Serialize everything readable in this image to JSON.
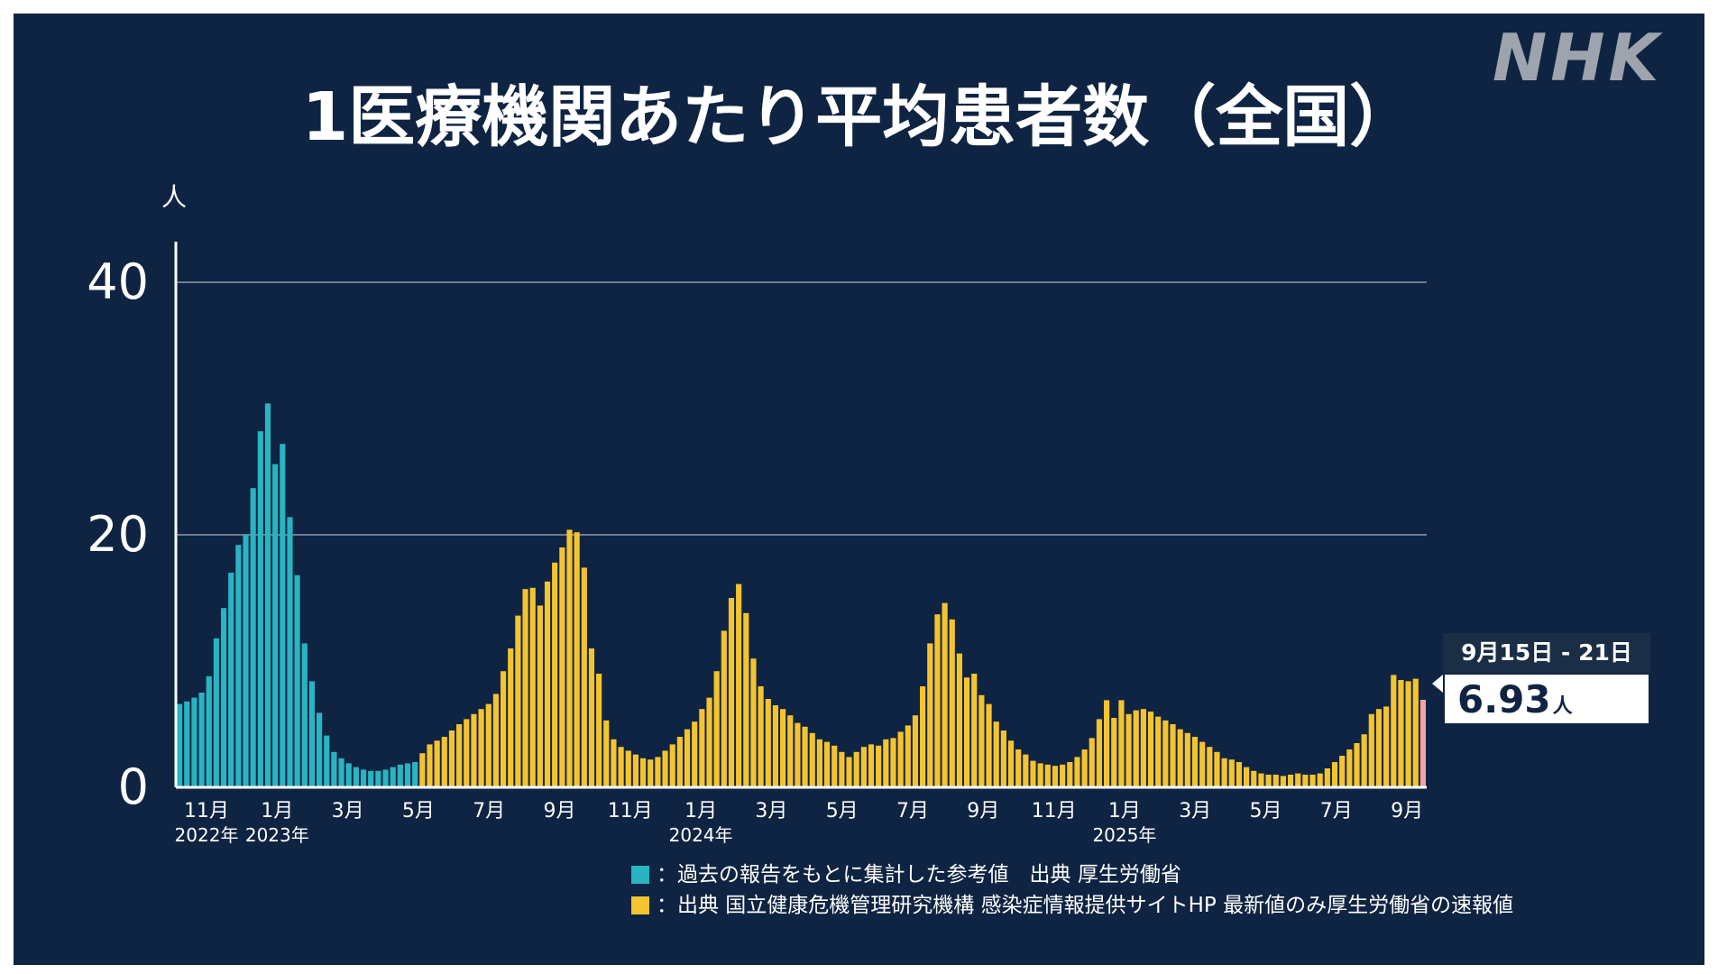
{
  "brand": {
    "logo_text": "NHK"
  },
  "chart_data": {
    "type": "bar",
    "title": "1医療機関あたり平均患者数（全国）",
    "ylabel": "人",
    "ylim": [
      0,
      40
    ],
    "yticks": [
      0,
      20,
      40
    ],
    "grid": true,
    "month_labels": [
      "11月",
      "1月",
      "3月",
      "5月",
      "7月",
      "9月",
      "11月",
      "1月",
      "3月",
      "5月",
      "7月",
      "9月",
      "11月",
      "1月",
      "3月",
      "5月",
      "7月",
      "9月"
    ],
    "year_labels": [
      {
        "label": "2022年",
        "month_index": 0
      },
      {
        "label": "2023年",
        "month_index": 1
      },
      {
        "label": "2024年",
        "month_index": 7
      },
      {
        "label": "2025年",
        "month_index": 13
      }
    ],
    "series": [
      {
        "name": "過去の報告をもとに集計した参考値",
        "color": "#29b4c2",
        "values": [
          6.6,
          6.8,
          7.1,
          7.5,
          8.8,
          11.8,
          14.2,
          17.0,
          19.2,
          20.0,
          23.7,
          28.2,
          30.4,
          25.6,
          27.2,
          21.4,
          16.8,
          11.4,
          8.4,
          5.9,
          4.1,
          2.8,
          2.3,
          1.9,
          1.6,
          1.4,
          1.3,
          1.3,
          1.4,
          1.6,
          1.8,
          1.9,
          2.0
        ]
      },
      {
        "name": "出典 国立健康危機管理研究機構 感染症情報提供サイトHP 最新値のみ厚生労働省の速報値",
        "color": "#f4c430",
        "values": [
          2.7,
          3.4,
          3.7,
          4.0,
          4.5,
          5.0,
          5.4,
          5.8,
          6.2,
          6.6,
          7.4,
          9.2,
          11.0,
          13.6,
          15.7,
          15.8,
          14.4,
          16.3,
          17.8,
          19.0,
          20.4,
          20.2,
          17.4,
          11.0,
          9.0,
          5.3,
          3.8,
          3.2,
          2.9,
          2.6,
          2.3,
          2.2,
          2.4,
          2.9,
          3.4,
          4.0,
          4.6,
          5.2,
          6.2,
          7.1,
          9.2,
          12.4,
          15.0,
          16.1,
          13.8,
          10.2,
          8.0,
          7.0,
          6.5,
          6.2,
          5.7,
          5.1,
          4.8,
          4.3,
          3.8,
          3.6,
          3.3,
          2.8,
          2.4,
          2.8,
          3.2,
          3.4,
          3.3,
          3.8,
          3.9,
          4.4,
          4.9,
          5.7,
          8.0,
          11.4,
          13.7,
          14.6,
          13.3,
          10.6,
          8.7,
          9.0,
          7.3,
          6.6,
          5.2,
          4.5,
          3.7,
          3.0,
          2.6,
          2.1,
          1.9,
          1.8,
          1.7,
          1.8,
          2.0,
          2.4,
          3.0,
          3.9,
          5.4,
          6.9,
          5.5,
          6.9,
          5.8,
          6.1,
          6.2,
          6.0,
          5.6,
          5.3,
          5.0,
          4.6,
          4.3,
          4.0,
          3.6,
          3.2,
          2.8,
          2.3,
          2.2,
          2.0,
          1.6,
          1.3,
          1.1,
          1.0,
          1.0,
          0.9,
          1.0,
          1.1,
          1.0,
          1.0,
          1.1,
          1.5,
          2.0,
          2.5,
          3.0,
          3.5,
          4.2,
          5.8,
          6.2,
          6.4,
          8.9,
          8.5,
          8.4,
          8.6,
          6.93
        ]
      }
    ],
    "latest": {
      "period": "9月15日 - 21日",
      "value": "6.93",
      "unit": "人",
      "color": "#f0a3a8"
    }
  },
  "legend": {
    "items": [
      {
        "text": "：過去の報告をもとに集計した参考値　出典 厚生労働省",
        "color": "#29b4c2"
      },
      {
        "text": "：出典 国立健康危機管理研究機構 感染症情報提供サイトHP 最新値のみ厚生労働省の速報値",
        "color": "#f4c430"
      }
    ]
  }
}
